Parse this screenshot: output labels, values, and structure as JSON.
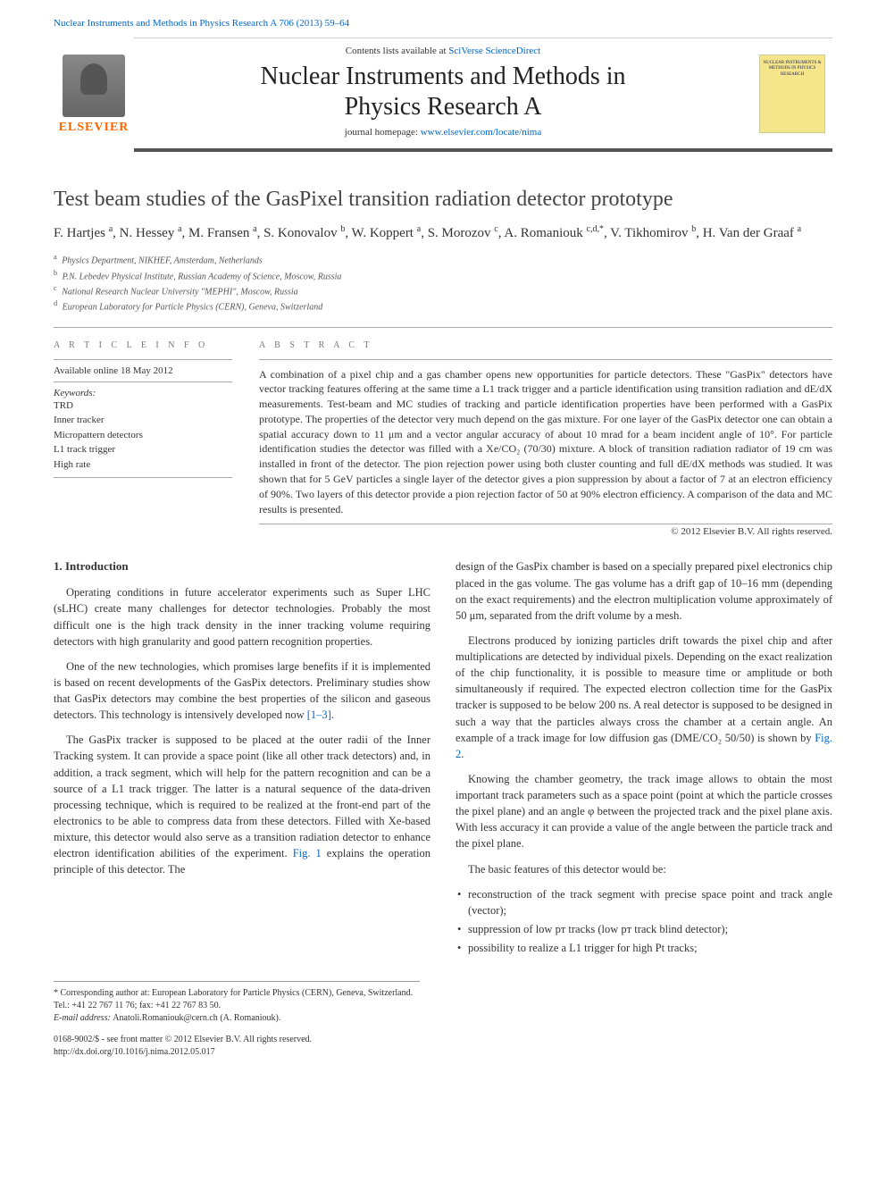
{
  "header": {
    "journal_ref": "Nuclear Instruments and Methods in Physics Research A 706 (2013) 59–64",
    "contents_prefix": "Contents lists available at ",
    "contents_link": "SciVerse ScienceDirect",
    "journal_name_line1": "Nuclear Instruments and Methods in",
    "journal_name_line2": "Physics Research A",
    "homepage_prefix": "journal homepage: ",
    "homepage_link": "www.elsevier.com/locate/nima",
    "elsevier_label": "ELSEVIER",
    "cover_text": "NUCLEAR INSTRUMENTS & METHODS IN PHYSICS RESEARCH"
  },
  "title": "Test beam studies of the GasPixel transition radiation detector prototype",
  "authors_html": "F. Hartjes <sup>a</sup>, N. Hessey <sup>a</sup>, M. Fransen <sup>a</sup>, S. Konovalov <sup>b</sup>, W. Koppert <sup>a</sup>, S. Morozov <sup>c</sup>, A. Romaniouk <sup>c,d,*</sup>, V. Tikhomirov <sup>b</sup>, H. Van der Graaf <sup>a</sup>",
  "affiliations": [
    {
      "sup": "a",
      "text": "Physics Department, NIKHEF, Amsterdam, Netherlands"
    },
    {
      "sup": "b",
      "text": "P.N. Lebedev Physical Institute, Russian Academy of Science, Moscow, Russia"
    },
    {
      "sup": "c",
      "text": "National Research Nuclear University \"MEPHI\", Moscow, Russia"
    },
    {
      "sup": "d",
      "text": "European Laboratory for Particle Physics (CERN), Geneva, Switzerland"
    }
  ],
  "article_info": {
    "heading": "a r t i c l e   i n f o",
    "available": "Available online 18 May 2012",
    "keywords_label": "Keywords:",
    "keywords": [
      "TRD",
      "Inner tracker",
      "Micropattern detectors",
      "L1 track trigger",
      "High rate"
    ]
  },
  "abstract": {
    "heading": "a b s t r a c t",
    "text": "A combination of a pixel chip and a gas chamber opens new opportunities for particle detectors. These \"GasPix\" detectors have vector tracking features offering at the same time a L1 track trigger and a particle identification using transition radiation and dE/dX measurements. Test-beam and MC studies of tracking and particle identification properties have been performed with a GasPix prototype. The properties of the detector very much depend on the gas mixture. For one layer of the GasPix detector one can obtain a spatial accuracy down to 11 μm and a vector angular accuracy of about 10 mrad for a beam incident angle of 10°. For particle identification studies the detector was filled with a Xe/CO₂ (70/30) mixture. A block of transition radiation radiator of 19 cm was installed in front of the detector. The pion rejection power using both cluster counting and full dE/dX methods was studied. It was shown that for 5 GeV particles a single layer of the detector gives a pion suppression by about a factor of 7 at an electron efficiency of 90%. Two layers of this detector provide a pion rejection factor of 50 at 90% electron efficiency. A comparison of the data and MC results is presented.",
    "copyright": "© 2012 Elsevier B.V. All rights reserved."
  },
  "body": {
    "section_heading": "1. Introduction",
    "col1": {
      "p1": "Operating conditions in future accelerator experiments such as Super LHC (sLHC) create many challenges for detector technologies. Probably the most difficult one is the high track density in the inner tracking volume requiring detectors with high granularity and good pattern recognition properties.",
      "p2a": "One of the new technologies, which promises large benefits if it is implemented is based on recent developments of the GasPix detectors. Preliminary studies show that GasPix detectors may combine the best properties of the silicon and gaseous detectors. This technology is intensively developed now ",
      "p2_link": "[1–3]",
      "p2b": ".",
      "p3a": "The GasPix tracker is supposed to be placed at the outer radii of the Inner Tracking system. It can provide a space point (like all other track detectors) and, in addition, a track segment, which will help for the pattern recognition and can be a source of a L1 track trigger. The latter is a natural sequence of the data-driven processing technique, which is required to be realized at the front-end part of the electronics to be able to compress data from these detectors. Filled with Xe-based mixture, this detector would also serve as a transition radiation detector to enhance electron identification abilities of the experiment. ",
      "p3_link": "Fig. 1",
      "p3b": " explains the operation principle of this detector. The"
    },
    "col2": {
      "p1": "design of the GasPix chamber is based on a specially prepared pixel electronics chip placed in the gas volume. The gas volume has a drift gap of 10–16 mm (depending on the exact requirements) and the electron multiplication volume approximately of 50 μm, separated from the drift volume by a mesh.",
      "p2a": "Electrons produced by ionizing particles drift towards the pixel chip and after multiplications are detected by individual pixels. Depending on the exact realization of the chip functionality, it is possible to measure time or amplitude or both simultaneously if required. The expected electron collection time for the GasPix tracker is supposed to be below 200 ns. A real detector is supposed to be designed in such a way that the particles always cross the chamber at a certain angle. An example of a track image for low diffusion gas (DME/CO₂ 50/50) is shown by ",
      "p2_link": "Fig. 2",
      "p2b": ".",
      "p3": "Knowing the chamber geometry, the track image allows to obtain the most important track parameters such as a space point (point at which the particle crosses the pixel plane) and an angle φ between the projected track and the pixel plane axis. With less accuracy it can provide a value of the angle between the particle track and the pixel plane.",
      "p4": "The basic features of this detector would be:",
      "bullets": [
        "reconstruction of the track segment with precise space point and track angle (vector);",
        "suppression of low pᴛ tracks (low pᴛ track blind detector);",
        "possibility to realize a L1 trigger for high Pt tracks;"
      ]
    }
  },
  "footnotes": {
    "corr": "* Corresponding author at: European Laboratory for Particle Physics (CERN), Geneva, Switzerland. Tel.: +41 22 767 11 76; fax: +41 22 767 83 50.",
    "email_label": "E-mail address: ",
    "email": "Anatoli.Romaniouk@cern.ch",
    "email_suffix": " (A. Romaniouk)."
  },
  "doi": {
    "line1": "0168-9002/$ - see front matter © 2012 Elsevier B.V. All rights reserved.",
    "line2": "http://dx.doi.org/10.1016/j.nima.2012.05.017"
  },
  "colors": {
    "link": "#0066cc",
    "text": "#333333",
    "rule": "#aaaaaa",
    "elsevier_orange": "#ff6600",
    "cover_bg": "#f5e68c"
  }
}
